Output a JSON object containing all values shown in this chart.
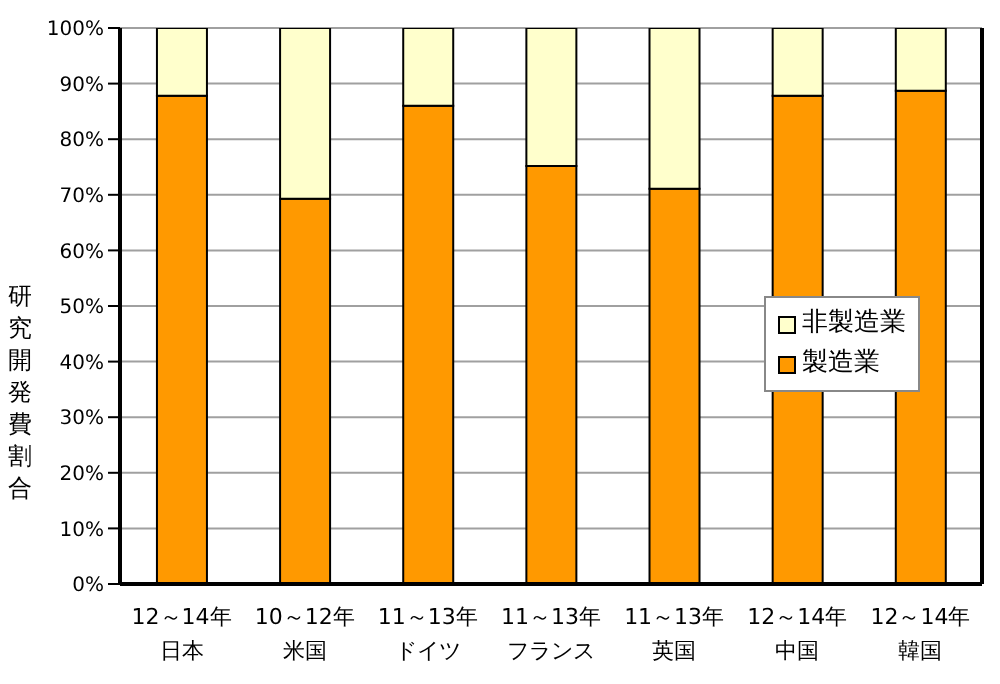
{
  "chart_data": {
    "type": "bar",
    "stacked": true,
    "ylabel": "研究開発費割合",
    "categories": [
      "12～14年日本",
      "10～12年米国",
      "11～13年ドイツ",
      "11～13年フランス",
      "11～13年英国",
      "12～14年中国",
      "12～14年韓国"
    ],
    "series": [
      {
        "name": "製造業",
        "color": "#ff9900",
        "values": [
          87.8,
          69.3,
          86,
          75.2,
          71.1,
          87.8,
          88.7
        ]
      },
      {
        "name": "非製造業",
        "color": "#ffffcc",
        "values": [
          12.2,
          30.7,
          14,
          24.8,
          28.9,
          12.2,
          11.3
        ]
      }
    ],
    "ylim": [
      0,
      100
    ],
    "yticks": [
      {
        "value": 0,
        "label": "0%"
      },
      {
        "value": 10,
        "label": "10%"
      },
      {
        "value": 20,
        "label": "20%"
      },
      {
        "value": 30,
        "label": "30%"
      },
      {
        "value": 40,
        "label": "40%"
      },
      {
        "value": 50,
        "label": "50%"
      },
      {
        "value": 60,
        "label": "60%"
      },
      {
        "value": 70,
        "label": "70%"
      },
      {
        "value": 80,
        "label": "80%"
      },
      {
        "value": 90,
        "label": "90%"
      },
      {
        "value": 100,
        "label": "100%"
      }
    ],
    "grid": "y",
    "legend": "right"
  }
}
